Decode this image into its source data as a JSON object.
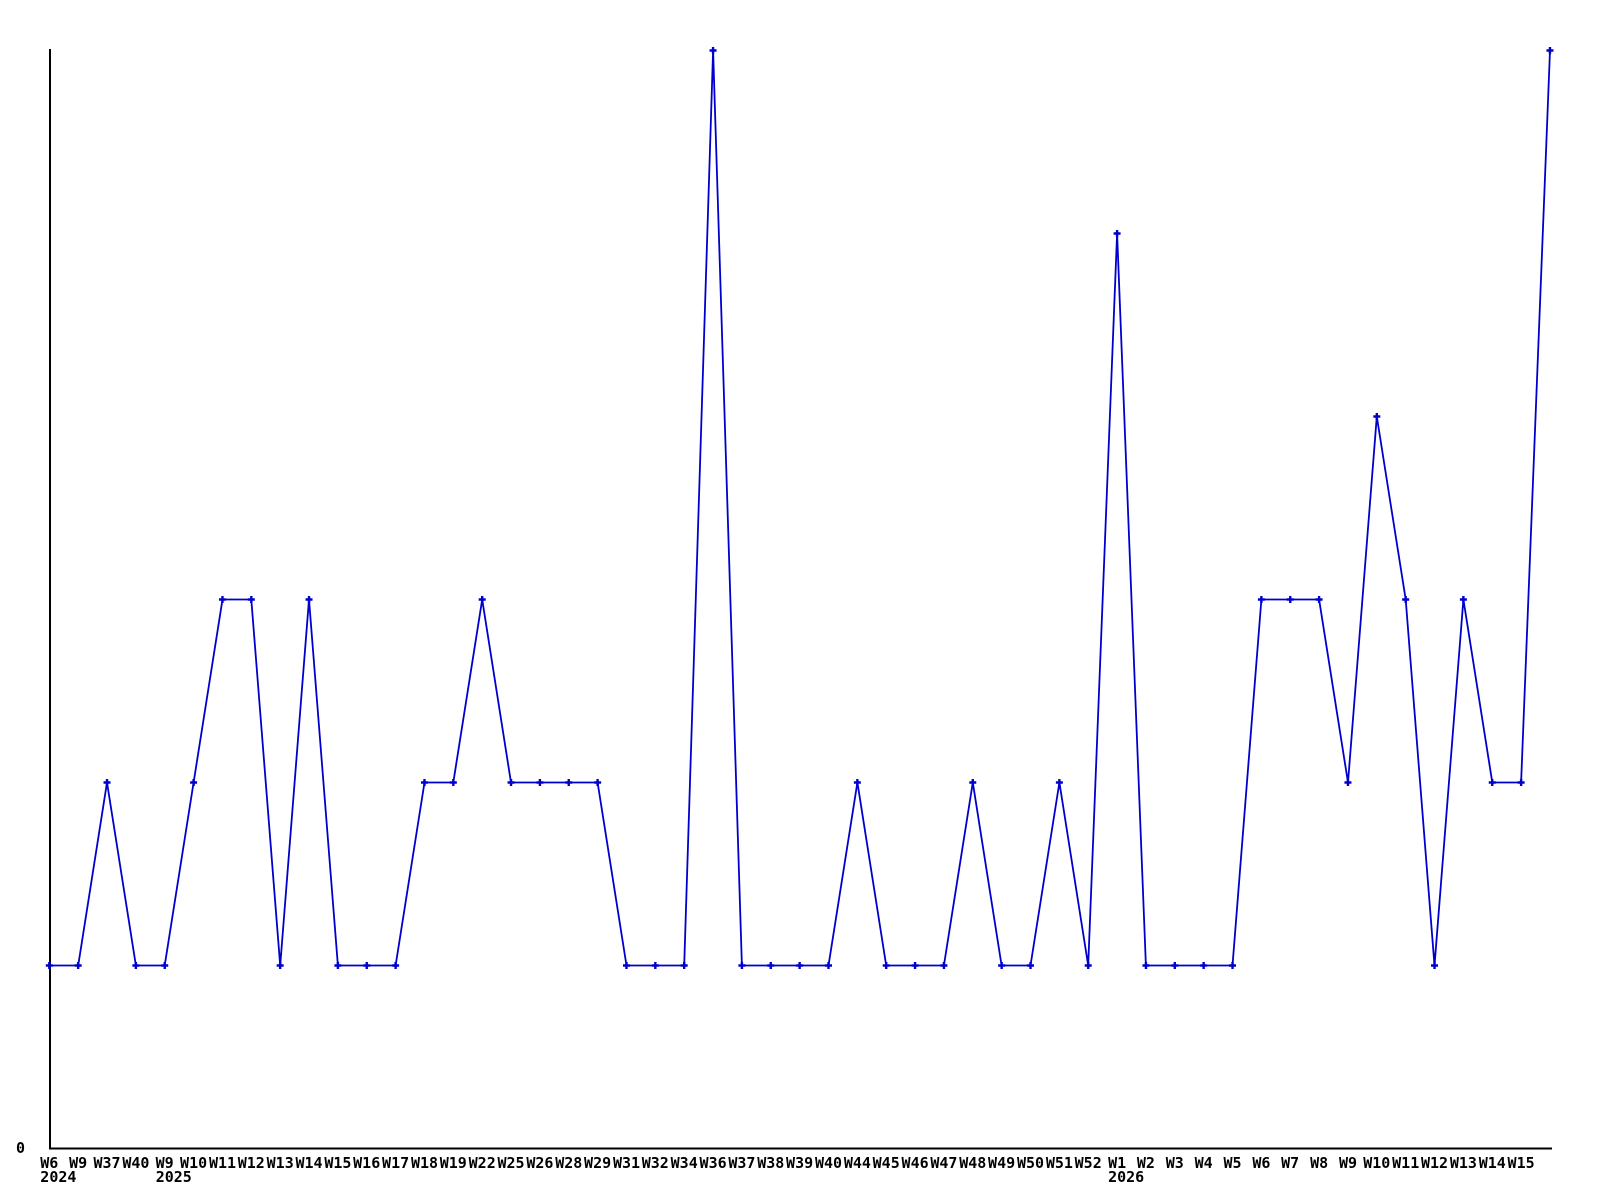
{
  "chart_data": {
    "type": "line",
    "title": "",
    "xlabel": "",
    "ylabel": "",
    "legend": null,
    "grid": false,
    "background_color": "#ffffff",
    "line_color": "#0000cd",
    "axis_color": "#000000",
    "text_color": "#000000",
    "marker_style": "plus",
    "y_axis": {
      "origin_label": "0",
      "min": 0,
      "max_value_shown": 6
    },
    "x": [
      "W6",
      "W9",
      "W37",
      "W40",
      "W9",
      "W10",
      "W11",
      "W12",
      "W13",
      "W14",
      "W15",
      "W16",
      "W17",
      "W18",
      "W19",
      "W22",
      "W25",
      "W26",
      "W28",
      "W29",
      "W31",
      "W32",
      "W34",
      "W36",
      "W37",
      "W38",
      "W39",
      "W40",
      "W44",
      "W45",
      "W46",
      "W47",
      "W48",
      "W49",
      "W50",
      "W51",
      "W52",
      "W1",
      "W2",
      "W3",
      "W4",
      "W5",
      "W6",
      "W7",
      "W8",
      "W9",
      "W10",
      "W11",
      "W12",
      "W13",
      "W14",
      "W15",
      ""
    ],
    "values": [
      1,
      1,
      2,
      1,
      1,
      2,
      3,
      3,
      1,
      3,
      1,
      1,
      1,
      2,
      2,
      3,
      2,
      2,
      2,
      2,
      1,
      1,
      1,
      6,
      1,
      1,
      1,
      1,
      2,
      1,
      1,
      1,
      2,
      1,
      1,
      2,
      1,
      5,
      1,
      1,
      1,
      1,
      3,
      3,
      3,
      2,
      4,
      3,
      1,
      3,
      2,
      2,
      6
    ],
    "year_markers": [
      {
        "index": 0,
        "label": "2024"
      },
      {
        "index": 4,
        "label": "2025"
      },
      {
        "index": 37,
        "label": "2026"
      }
    ]
  }
}
